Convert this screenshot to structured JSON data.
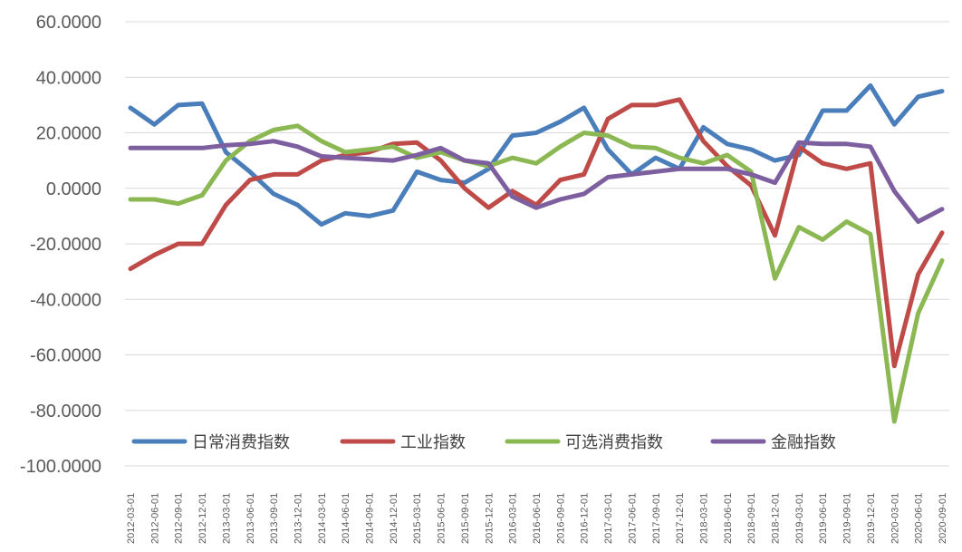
{
  "chart_data": {
    "type": "line",
    "title": "",
    "xlabel": "",
    "ylabel": "",
    "ylim": [
      -100,
      60
    ],
    "yticks": [
      60,
      40,
      20,
      0,
      -20,
      -40,
      -60,
      -80,
      -100
    ],
    "ytick_labels": [
      "60.0000",
      "40.0000",
      "20.0000",
      "0.0000",
      "-20.0000",
      "-40.0000",
      "-60.0000",
      "-80.0000",
      "-100.0000"
    ],
    "grid": true,
    "legend_position": "bottom-inside",
    "categories": [
      "2012-03-01",
      "2012-06-01",
      "2012-09-01",
      "2012-12-01",
      "2013-03-01",
      "2013-06-01",
      "2013-09-01",
      "2013-12-01",
      "2014-03-01",
      "2014-06-01",
      "2014-09-01",
      "2014-12-01",
      "2015-03-01",
      "2015-06-01",
      "2015-09-01",
      "2015-12-01",
      "2016-03-01",
      "2016-06-01",
      "2016-09-01",
      "2016-12-01",
      "2017-03-01",
      "2017-06-01",
      "2017-09-01",
      "2017-12-01",
      "2018-03-01",
      "2018-06-01",
      "2018-09-01",
      "2018-12-01",
      "2019-03-01",
      "2019-06-01",
      "2019-09-01",
      "2019-12-01",
      "2020-03-01",
      "2020-06-01",
      "2020-09-01"
    ],
    "series": [
      {
        "name": "日常消费指数",
        "color": "#4a7ebb",
        "values": [
          29,
          23,
          30,
          30.5,
          13,
          6,
          -2,
          -6,
          -13,
          -9,
          -10,
          -8,
          6,
          3,
          2,
          7,
          19,
          20,
          24,
          29,
          14,
          5,
          11,
          7,
          22,
          16,
          14,
          10,
          12,
          28,
          28,
          37,
          23,
          33,
          35
        ]
      },
      {
        "name": "工业指数",
        "color": "#be4b48",
        "values": [
          -29,
          -24,
          -20,
          -20,
          -6,
          3,
          5,
          5,
          10,
          12,
          13,
          16,
          16.5,
          10,
          0,
          -7,
          -1,
          -6,
          3,
          5,
          25,
          30,
          30,
          32,
          17,
          8,
          1,
          -17,
          15,
          9,
          7,
          9,
          -64,
          -31,
          -16
        ]
      },
      {
        "name": "可选消费指数",
        "color": "#8cb854",
        "values": [
          -4,
          -4,
          -5.5,
          -2.5,
          10,
          17,
          21,
          22.5,
          17,
          13,
          14,
          15,
          11,
          13,
          10,
          8,
          11,
          9,
          15,
          20,
          19,
          15,
          14.5,
          11,
          9,
          12,
          6,
          -32.5,
          -14,
          -18.5,
          -12,
          -16.5,
          -84,
          -45,
          -26
        ]
      },
      {
        "name": "金融指数",
        "color": "#7d5fa0",
        "values": [
          14.5,
          14.5,
          14.5,
          14.5,
          15.5,
          16,
          17,
          15,
          11.5,
          11,
          10.5,
          10,
          12,
          14.5,
          10,
          9,
          -3,
          -7,
          -4,
          -2,
          4,
          5,
          6,
          7,
          7,
          7,
          5,
          2,
          16.5,
          16,
          16,
          15,
          -1,
          -12,
          -7.5
        ]
      }
    ]
  }
}
